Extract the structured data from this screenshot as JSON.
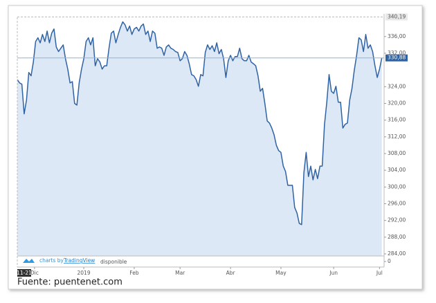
{
  "chart_data": {
    "type": "area",
    "series": [
      {
        "color": "#2f62a3",
        "fill": "#dce8f5",
        "values": [
          325.7,
          324.9,
          324.6,
          317.5,
          320.8,
          327.4,
          326.6,
          329.9,
          334.8,
          335.7,
          334.5,
          336.5,
          334.8,
          337.3,
          334.5,
          336.8,
          337.8,
          333.5,
          332.4,
          333.2,
          334.0,
          330.7,
          328.2,
          324.9,
          325.2,
          320.0,
          319.6,
          324.9,
          328.2,
          330.7,
          334.8,
          335.7,
          334.0,
          335.7,
          329.0,
          330.7,
          329.9,
          328.2,
          329.0,
          329.0,
          333.2,
          336.8,
          337.3,
          334.5,
          336.5,
          338.2,
          339.5,
          338.8,
          337.3,
          338.5,
          336.5,
          337.8,
          338.2,
          337.3,
          338.5,
          339.0,
          336.5,
          337.3,
          334.8,
          337.3,
          336.8,
          333.2,
          333.5,
          333.2,
          331.5,
          333.5,
          334.0,
          333.2,
          332.9,
          332.4,
          332.2,
          330.2,
          330.7,
          332.4,
          331.5,
          329.5,
          326.9,
          326.6,
          325.7,
          324.1,
          326.9,
          326.6,
          332.2,
          334.0,
          332.9,
          333.8,
          332.4,
          334.5,
          331.9,
          332.9,
          330.7,
          326.2,
          330.2,
          331.5,
          330.2,
          331.2,
          331.2,
          333.2,
          330.7,
          330.2,
          330.2,
          331.5,
          329.9,
          329.5,
          329.0,
          326.6,
          322.9,
          323.6,
          319.9,
          315.8,
          315.3,
          314.1,
          312.5,
          310.0,
          308.7,
          308.3,
          305.0,
          303.7,
          300.4,
          300.4,
          300.4,
          295.1,
          293.8,
          291.3,
          291.0,
          303.4,
          308.3,
          302.5,
          305.0,
          301.7,
          304.2,
          302.0,
          305.0,
          305.0,
          315.0,
          320.3,
          326.9,
          322.9,
          322.4,
          324.1,
          320.3,
          320.3,
          314.1,
          315.0,
          315.3,
          320.8,
          323.6,
          327.9,
          331.5,
          335.7,
          335.2,
          332.4,
          336.5,
          333.2,
          334.0,
          332.4,
          329.0,
          326.2,
          328.2,
          330.88
        ]
      }
    ],
    "xlim": [
      0,
      160
    ],
    "xticks": [
      {
        "value": 7.5,
        "label": "Dic"
      },
      {
        "value": 29,
        "label": "2019"
      },
      {
        "value": 51,
        "label": "Feb"
      },
      {
        "value": 71,
        "label": "Mar"
      },
      {
        "value": 93,
        "label": "Abr"
      },
      {
        "value": 115,
        "label": "May"
      },
      {
        "value": 138,
        "label": "Jun"
      },
      {
        "value": 158,
        "label": "Jul"
      }
    ],
    "crosshair_x": {
      "value": 0,
      "label": "11-21"
    },
    "ylim": [
      283.5,
      340.6
    ],
    "yticks": [
      {
        "value": 284,
        "label": "284,00"
      },
      {
        "value": 288,
        "label": "288,00"
      },
      {
        "value": 292,
        "label": "292,00"
      },
      {
        "value": 296,
        "label": "296,00"
      },
      {
        "value": 300,
        "label": "300,00"
      },
      {
        "value": 304,
        "label": "304,00"
      },
      {
        "value": 308,
        "label": "308,00"
      },
      {
        "value": 312,
        "label": "312,00"
      },
      {
        "value": 316,
        "label": "316,00"
      },
      {
        "value": 320,
        "label": "320,00"
      },
      {
        "value": 324,
        "label": "324,00"
      },
      {
        "value": 332,
        "label": "332,00"
      },
      {
        "value": 336,
        "label": "336,00"
      }
    ],
    "high": {
      "value": 340.19,
      "label": "340,19"
    },
    "last_price": {
      "value": 330.88,
      "label": "330,88",
      "color": "#2f62a3"
    },
    "volume_ticks": [
      0
    ],
    "volume_note": "disponible",
    "watermark": [
      "charts by",
      "TradingView"
    ],
    "source": "Fuente: puentenet.com"
  }
}
